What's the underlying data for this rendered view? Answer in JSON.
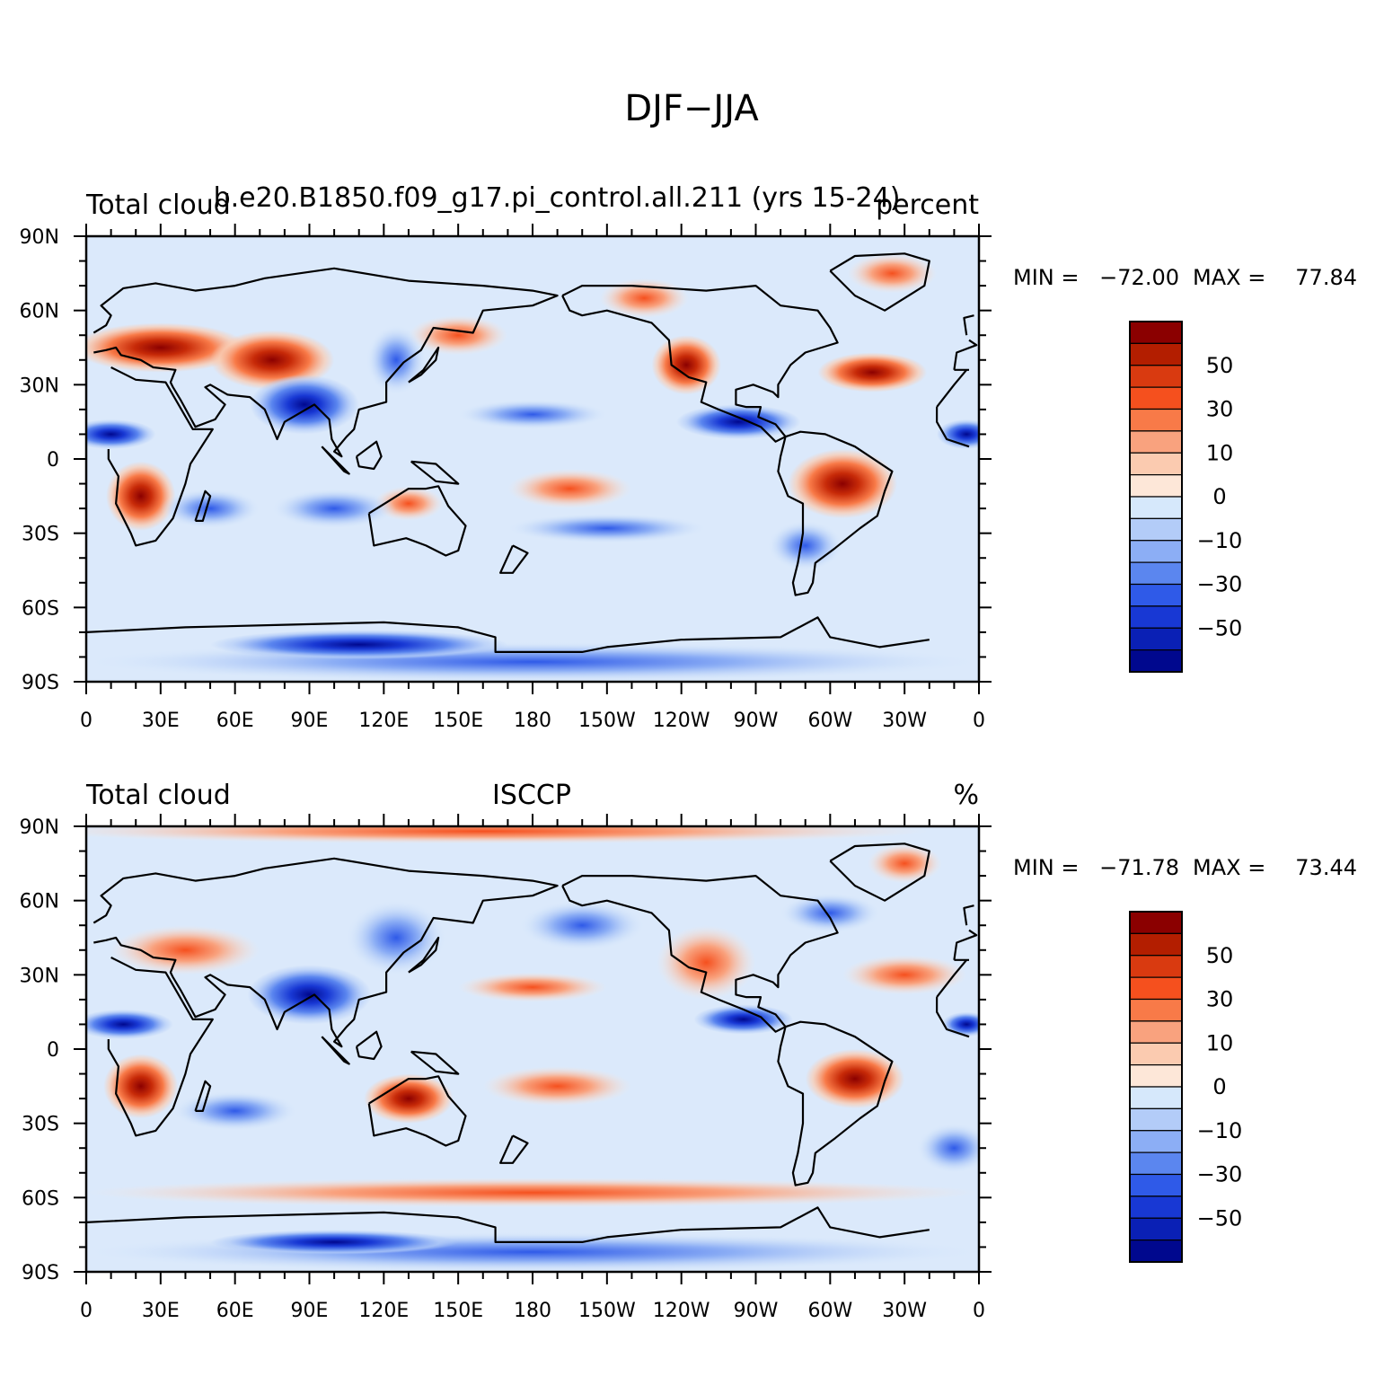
{
  "figure": {
    "title": "DJF−JJA"
  },
  "panels": [
    {
      "left_label": "Total cloud",
      "center_label": "b.e20.B1850.f09_g17.pi_control.all.211 (yrs 15-24)",
      "right_label": "percent",
      "minmax": {
        "min_label": "MIN =",
        "min": "−72.00",
        "max_label": "MAX =",
        "max": "77.84"
      }
    },
    {
      "left_label": "Total cloud",
      "center_label": "ISCCP",
      "right_label": "%",
      "minmax": {
        "min_label": "MIN =",
        "min": "−71.78",
        "max_label": "MAX =",
        "max": "73.44"
      }
    }
  ],
  "axes": {
    "y_ticks": [
      "90N",
      "60N",
      "30N",
      "0",
      "30S",
      "60S",
      "90S"
    ],
    "x_ticks": [
      "0",
      "30E",
      "60E",
      "90E",
      "120E",
      "150E",
      "180",
      "150W",
      "120W",
      "90W",
      "60W",
      "30W",
      "0"
    ]
  },
  "colorbar": {
    "labels": [
      "50",
      "30",
      "10",
      "0",
      "−10",
      "−30",
      "−50"
    ],
    "colors": [
      "#8b0000",
      "#b31e00",
      "#d93a10",
      "#f5501e",
      "#f87a48",
      "#f9a27e",
      "#fbcbb0",
      "#fde7d8",
      "#d6e8fb",
      "#b3ccf8",
      "#8caef5",
      "#5b86ef",
      "#2f5ae8",
      "#1838d4",
      "#0a20b5",
      "#00088e"
    ]
  }
}
